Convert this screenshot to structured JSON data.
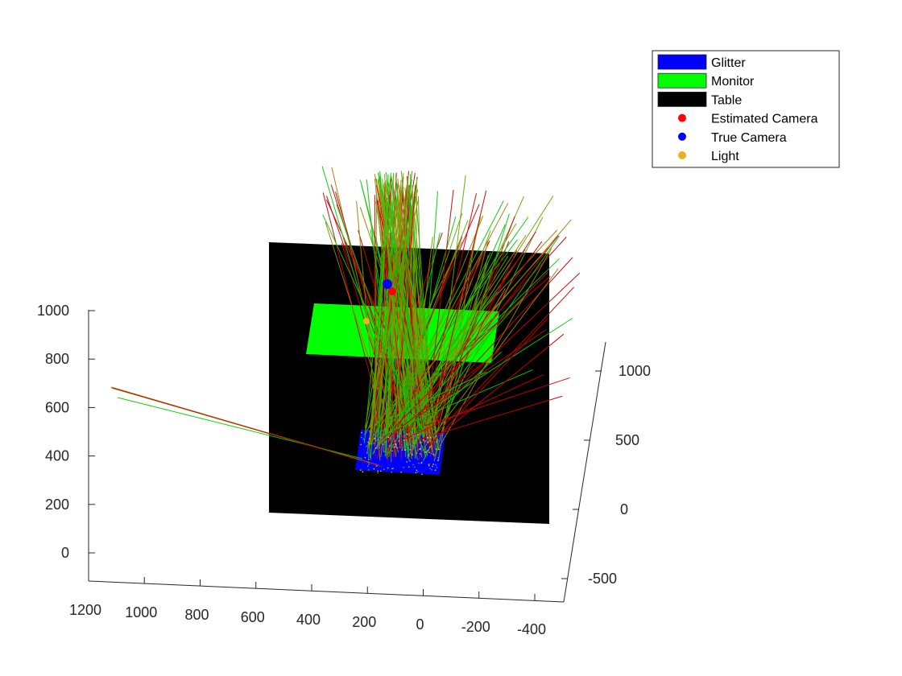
{
  "chart_data": {
    "type": "3d-scatter-scene",
    "title": "",
    "axes": {
      "z": {
        "ticks": [
          "0",
          "200",
          "400",
          "600",
          "800",
          "1000"
        ]
      },
      "x": {
        "ticks": [
          "1200",
          "1000",
          "800",
          "600",
          "400",
          "200",
          "0",
          "-200",
          "-400"
        ]
      },
      "y": {
        "ticks": [
          "-500",
          "0",
          "500",
          "1000"
        ]
      }
    },
    "legend": {
      "placement": "top-right",
      "entries": [
        {
          "name": "Glitter",
          "kind": "patch",
          "color": "#0000ff"
        },
        {
          "name": "Monitor",
          "kind": "patch",
          "color": "#00ff00"
        },
        {
          "name": "Table",
          "kind": "patch",
          "color": "#000000"
        },
        {
          "name": "Estimated Camera",
          "kind": "marker",
          "color": "#ff0000"
        },
        {
          "name": "True Camera",
          "kind": "marker",
          "color": "#0000ff"
        },
        {
          "name": "Light",
          "kind": "marker",
          "color": "#edb120"
        }
      ]
    },
    "ray_colors": [
      "#00cc00",
      "#cc0000",
      "#66aa00",
      "#a08000"
    ]
  }
}
